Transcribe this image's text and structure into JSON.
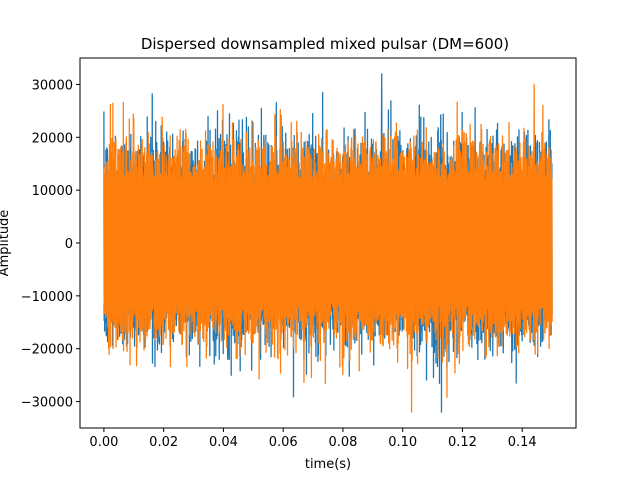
{
  "chart_data": {
    "type": "line",
    "title": "Dispersed downsampled mixed pulsar (DM=600)",
    "xlabel": "time(s)",
    "ylabel": "Amplitude",
    "xlim": [
      -0.008,
      0.158
    ],
    "ylim": [
      -35000,
      35000
    ],
    "x_ticks": [
      0.0,
      0.02,
      0.04,
      0.06,
      0.08,
      0.1,
      0.12,
      0.14
    ],
    "x_tick_labels": [
      "0.00",
      "0.02",
      "0.04",
      "0.06",
      "0.08",
      "0.10",
      "0.12",
      "0.14"
    ],
    "y_ticks": [
      -30000,
      -20000,
      -10000,
      0,
      10000,
      20000,
      30000
    ],
    "y_tick_labels": [
      "−30000",
      "−20000",
      "−10000",
      "0",
      "10000",
      "20000",
      "30000"
    ],
    "grid": false,
    "legend": "none",
    "series": [
      {
        "color": "#1f77b4",
        "x_range": [
          0.0,
          0.15
        ],
        "typical_band": [
          -20000,
          20000
        ],
        "envelope": [
          -30000,
          30000
        ],
        "max": {
          "x": 0.093,
          "y": 32000
        },
        "min": {
          "x": 0.113,
          "y": -32000
        }
      },
      {
        "color": "#ff7f0e",
        "x_range": [
          0.0,
          0.15
        ],
        "typical_band": [
          -20000,
          20000
        ],
        "envelope": [
          -30000,
          27000
        ],
        "max": {
          "x": 0.144,
          "y": 30000
        },
        "min": {
          "x": 0.103,
          "y": -32000
        }
      }
    ]
  }
}
